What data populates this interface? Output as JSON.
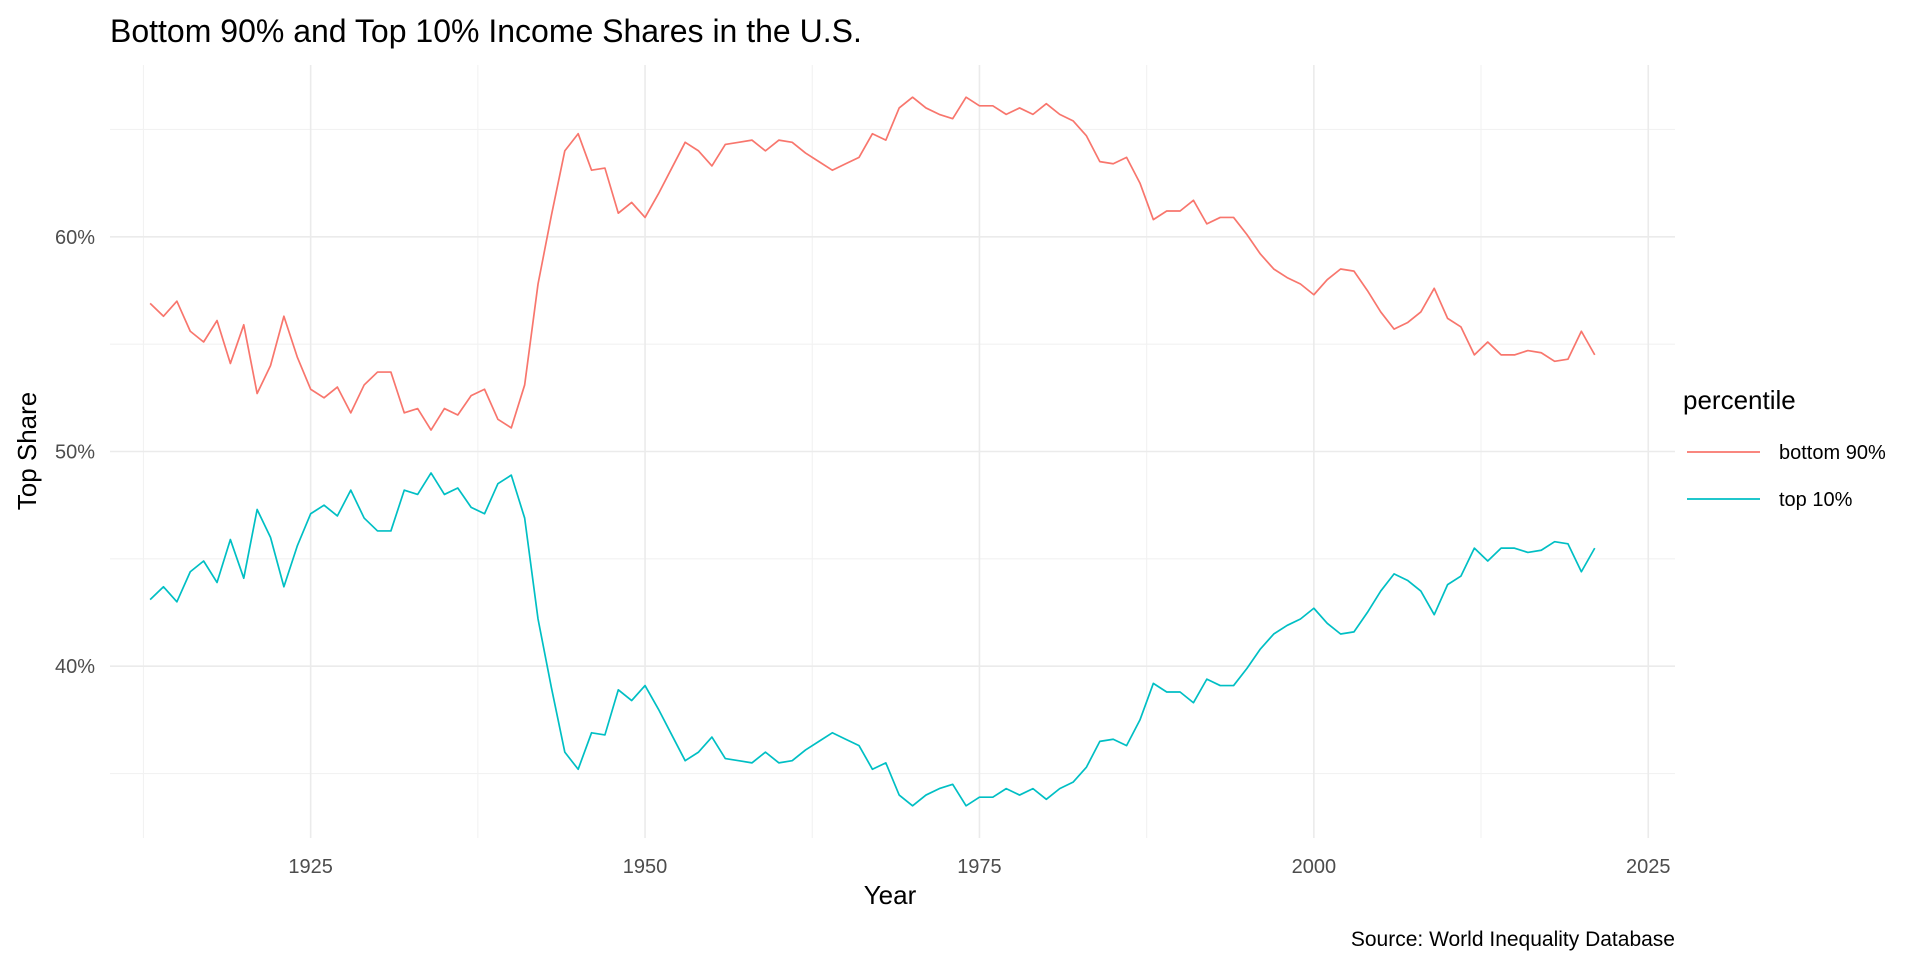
{
  "chart_data": {
    "type": "line",
    "title": "Bottom 90% and Top 10% Income Shares in the U.S.",
    "xlabel": "Year",
    "ylabel": "Top Share",
    "caption": "Source: World Inequality Database",
    "xlim": [
      1910,
      2027
    ],
    "ylim": [
      0.32,
      0.68
    ],
    "x_ticks": [
      1925,
      1950,
      1975,
      2000,
      2025
    ],
    "x_tick_labels": [
      "1925",
      "1950",
      "1975",
      "2000",
      "2025"
    ],
    "y_ticks": [
      0.4,
      0.5,
      0.6
    ],
    "y_tick_labels": [
      "40%",
      "50%",
      "60%"
    ],
    "x_minor_ticks": [
      1912.5,
      1937.5,
      1962.5,
      1987.5,
      2012.5
    ],
    "y_minor_ticks": [
      0.35,
      0.45,
      0.55,
      0.65
    ],
    "grid": true,
    "legend": {
      "title": "percentile",
      "position": "right"
    },
    "x": [
      1913,
      1914,
      1915,
      1916,
      1917,
      1918,
      1919,
      1920,
      1921,
      1922,
      1923,
      1924,
      1925,
      1926,
      1927,
      1928,
      1929,
      1930,
      1931,
      1932,
      1933,
      1934,
      1935,
      1936,
      1937,
      1938,
      1939,
      1940,
      1941,
      1942,
      1943,
      1944,
      1945,
      1946,
      1947,
      1948,
      1949,
      1950,
      1951,
      1952,
      1953,
      1954,
      1955,
      1956,
      1957,
      1958,
      1959,
      1960,
      1961,
      1962,
      1963,
      1964,
      1965,
      1966,
      1967,
      1968,
      1969,
      1970,
      1971,
      1972,
      1973,
      1974,
      1975,
      1976,
      1977,
      1978,
      1979,
      1980,
      1981,
      1982,
      1983,
      1984,
      1985,
      1986,
      1987,
      1988,
      1989,
      1990,
      1991,
      1992,
      1993,
      1994,
      1995,
      1996,
      1997,
      1998,
      1999,
      2000,
      2001,
      2002,
      2003,
      2004,
      2005,
      2006,
      2007,
      2008,
      2009,
      2010,
      2011,
      2012,
      2013,
      2014,
      2015,
      2016,
      2017,
      2018,
      2019,
      2020,
      2021
    ],
    "series": [
      {
        "name": "bottom 90%",
        "color": "#F8766D",
        "values": [
          0.569,
          0.563,
          0.57,
          0.556,
          0.551,
          0.561,
          0.541,
          0.559,
          0.527,
          0.54,
          0.563,
          0.544,
          0.529,
          0.525,
          0.53,
          0.518,
          0.531,
          0.537,
          0.537,
          0.518,
          0.52,
          0.51,
          0.52,
          0.517,
          0.526,
          0.529,
          0.515,
          0.511,
          0.531,
          0.578,
          0.61,
          0.64,
          0.648,
          0.631,
          0.632,
          0.611,
          0.616,
          0.609,
          0.62,
          0.632,
          0.644,
          0.64,
          0.633,
          0.643,
          0.644,
          0.645,
          0.64,
          0.645,
          0.644,
          0.639,
          0.635,
          0.631,
          0.634,
          0.637,
          0.648,
          0.645,
          0.66,
          0.665,
          0.66,
          0.657,
          0.655,
          0.665,
          0.661,
          0.661,
          0.657,
          0.66,
          0.657,
          0.662,
          0.657,
          0.654,
          0.647,
          0.635,
          0.634,
          0.637,
          0.625,
          0.608,
          0.612,
          0.612,
          0.617,
          0.606,
          0.609,
          0.609,
          0.601,
          0.592,
          0.585,
          0.581,
          0.578,
          0.573,
          0.58,
          0.585,
          0.584,
          0.575,
          0.565,
          0.557,
          0.56,
          0.565,
          0.576,
          0.562,
          0.558,
          0.545,
          0.551,
          0.545,
          0.545,
          0.547,
          0.546,
          0.542,
          0.543,
          0.556,
          0.545
        ]
      },
      {
        "name": "top 10%",
        "color": "#00BFC4",
        "values": [
          0.431,
          0.437,
          0.43,
          0.444,
          0.449,
          0.439,
          0.459,
          0.441,
          0.473,
          0.46,
          0.437,
          0.456,
          0.471,
          0.475,
          0.47,
          0.482,
          0.469,
          0.463,
          0.463,
          0.482,
          0.48,
          0.49,
          0.48,
          0.483,
          0.474,
          0.471,
          0.485,
          0.489,
          0.469,
          0.422,
          0.39,
          0.36,
          0.352,
          0.369,
          0.368,
          0.389,
          0.384,
          0.391,
          0.38,
          0.368,
          0.356,
          0.36,
          0.367,
          0.357,
          0.356,
          0.355,
          0.36,
          0.355,
          0.356,
          0.361,
          0.365,
          0.369,
          0.366,
          0.363,
          0.352,
          0.355,
          0.34,
          0.335,
          0.34,
          0.343,
          0.345,
          0.335,
          0.339,
          0.339,
          0.343,
          0.34,
          0.343,
          0.338,
          0.343,
          0.346,
          0.353,
          0.365,
          0.366,
          0.363,
          0.375,
          0.392,
          0.388,
          0.388,
          0.383,
          0.394,
          0.391,
          0.391,
          0.399,
          0.408,
          0.415,
          0.419,
          0.422,
          0.427,
          0.42,
          0.415,
          0.416,
          0.425,
          0.435,
          0.443,
          0.44,
          0.435,
          0.424,
          0.438,
          0.442,
          0.455,
          0.449,
          0.455,
          0.455,
          0.453,
          0.454,
          0.458,
          0.457,
          0.444,
          0.455
        ]
      }
    ]
  }
}
